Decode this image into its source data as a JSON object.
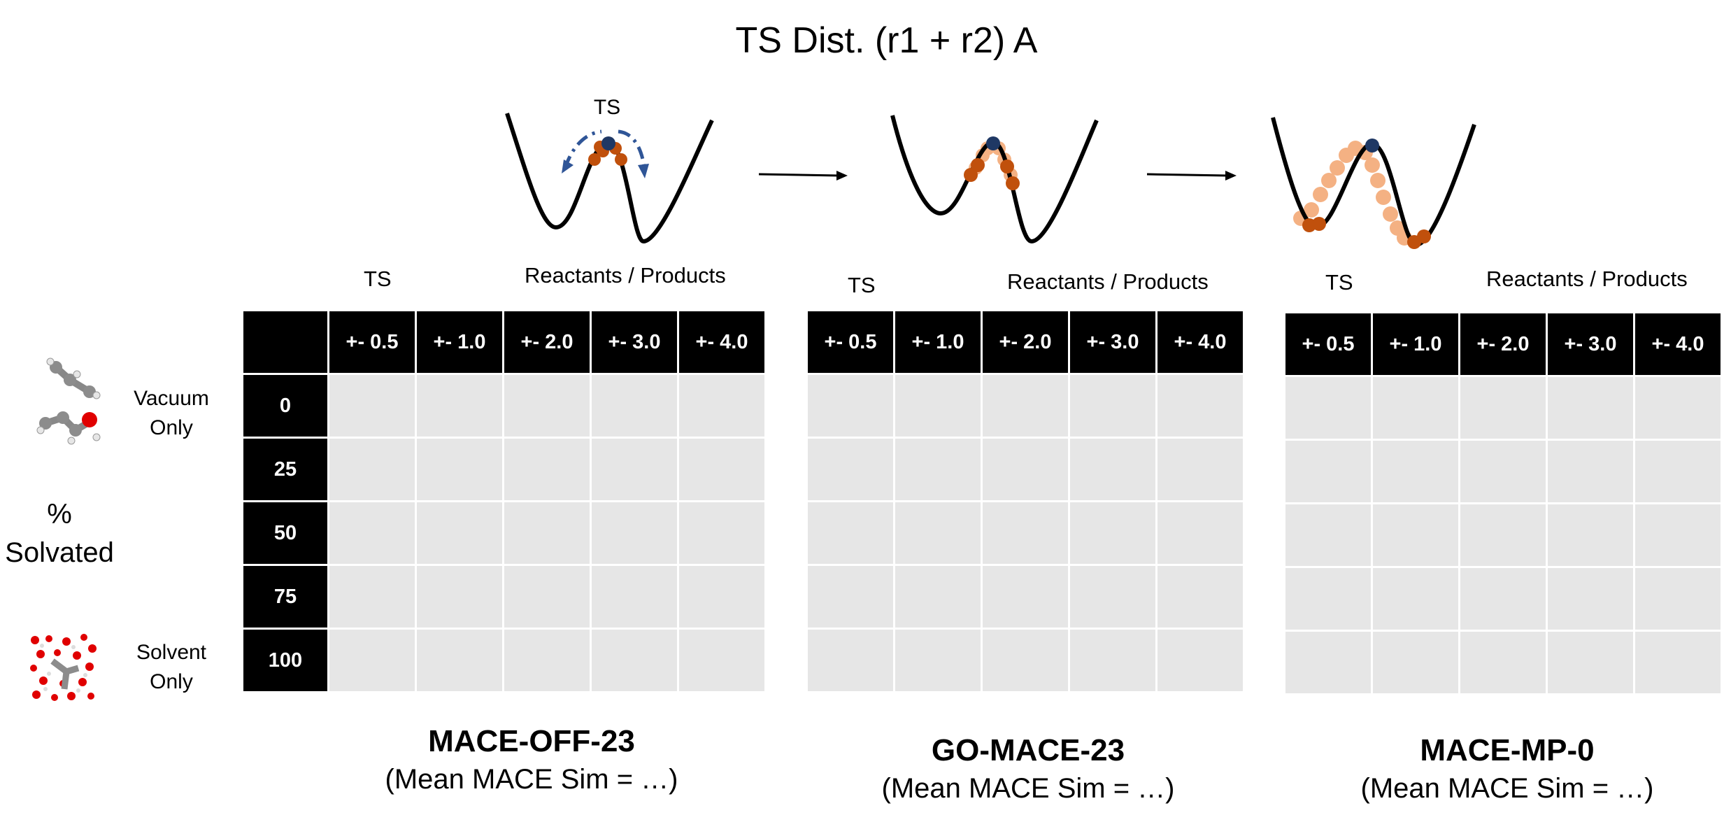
{
  "title": "TS Dist. (r1 + r2) A",
  "ts_marker": "TS",
  "axis": {
    "left": "TS",
    "right": "Reactants / Products"
  },
  "columns": [
    "+- 0.5",
    "+- 1.0",
    "+- 2.0",
    "+- 3.0",
    "+- 4.0"
  ],
  "rows": [
    "0",
    "25",
    "50",
    "75",
    "100"
  ],
  "side": {
    "top": "Vacuum\nOnly",
    "middle_pct": "%",
    "middle_word": "Solvated",
    "bottom": "Solvent\nOnly"
  },
  "models": [
    {
      "name": "MACE-OFF-23",
      "sub": "(Mean MACE Sim = …)"
    },
    {
      "name": "GO-MACE-23",
      "sub": "(Mean MACE Sim = …)"
    },
    {
      "name": "MACE-MP-0",
      "sub": "(Mean MACE Sim = …)"
    }
  ],
  "colors": {
    "header": "#000000",
    "cell": "#e6e6e6",
    "curve": "#000000",
    "sample_dark": "#c0500c",
    "sample_light": "#f4b183",
    "ts_point": "#1f3864",
    "arrow_blue": "#2f5597"
  }
}
